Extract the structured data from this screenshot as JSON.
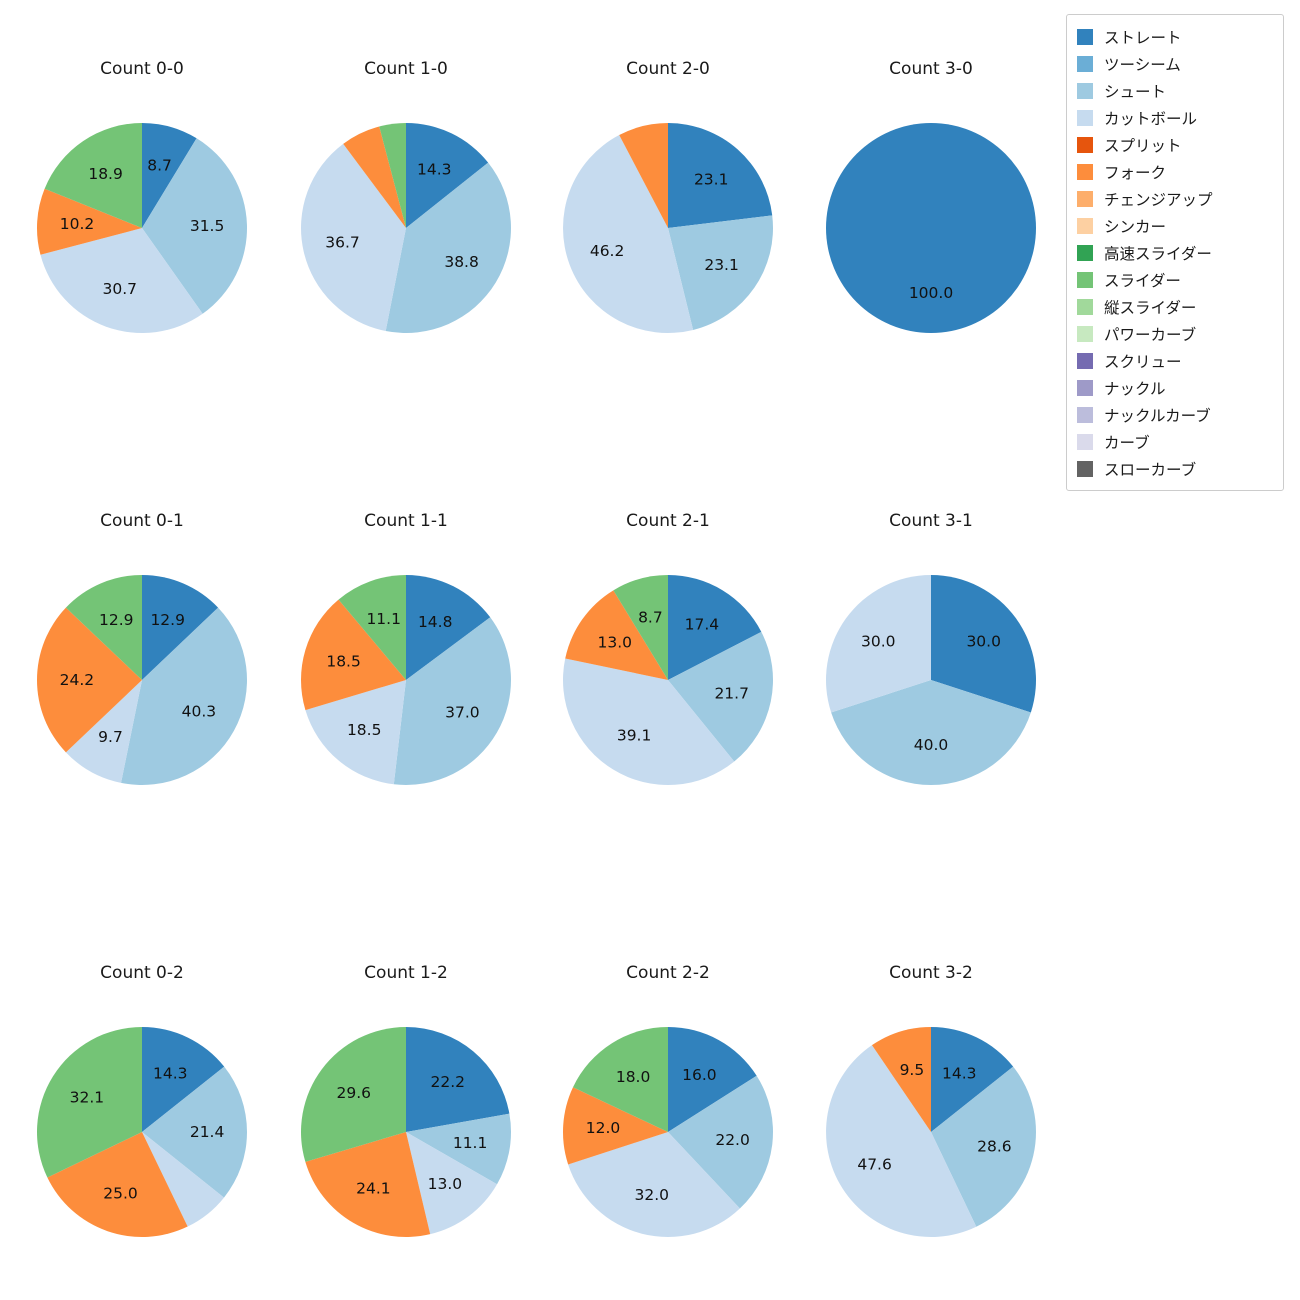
{
  "figure": {
    "background": "#ffffff",
    "label_color": "#111111",
    "title_color": "#1a1a1a"
  },
  "legend": {
    "position": "upper-right",
    "items": [
      {
        "key": "straight",
        "label": "ストレート",
        "color": "#3182bd"
      },
      {
        "key": "two-seam",
        "label": "ツーシーム",
        "color": "#6baed6"
      },
      {
        "key": "shuuto",
        "label": "シュート",
        "color": "#9ecae1"
      },
      {
        "key": "cut-ball",
        "label": "カットボール",
        "color": "#c6dbef"
      },
      {
        "key": "split",
        "label": "スプリット",
        "color": "#e6550d"
      },
      {
        "key": "fork",
        "label": "フォーク",
        "color": "#fd8d3c"
      },
      {
        "key": "changeup",
        "label": "チェンジアップ",
        "color": "#fdae6b"
      },
      {
        "key": "sinker",
        "label": "シンカー",
        "color": "#fdd0a2"
      },
      {
        "key": "fast-slider",
        "label": "高速スライダー",
        "color": "#31a354"
      },
      {
        "key": "slider",
        "label": "スライダー",
        "color": "#74c476"
      },
      {
        "key": "vertical-slider",
        "label": "縦スライダー",
        "color": "#a1d99b"
      },
      {
        "key": "power-curve",
        "label": "パワーカーブ",
        "color": "#c7e9c0"
      },
      {
        "key": "screw",
        "label": "スクリュー",
        "color": "#756bb1"
      },
      {
        "key": "knuckle",
        "label": "ナックル",
        "color": "#9e9ac8"
      },
      {
        "key": "knuckle-curve",
        "label": "ナックルカーブ",
        "color": "#bcbddc"
      },
      {
        "key": "curve",
        "label": "カーブ",
        "color": "#dadaeb"
      },
      {
        "key": "slow-curve",
        "label": "スローカーブ",
        "color": "#636363"
      }
    ]
  },
  "chart_data": [
    {
      "type": "pie",
      "title": "Count 0-0",
      "start_angle_deg": 90,
      "direction": "clockwise",
      "slices": [
        {
          "key": "straight",
          "label": "ストレート",
          "value": 8.7,
          "text": "8.7"
        },
        {
          "key": "shuuto",
          "label": "シュート",
          "value": 31.5,
          "text": "31.5"
        },
        {
          "key": "cut-ball",
          "label": "カットボール",
          "value": 30.7,
          "text": "30.7"
        },
        {
          "key": "fork",
          "label": "フォーク",
          "value": 10.2,
          "text": "10.2"
        },
        {
          "key": "slider",
          "label": "スライダー",
          "value": 18.9,
          "text": "18.9"
        }
      ]
    },
    {
      "type": "pie",
      "title": "Count 1-0",
      "start_angle_deg": 90,
      "direction": "clockwise",
      "slices": [
        {
          "key": "straight",
          "label": "ストレート",
          "value": 14.3,
          "text": "14.3"
        },
        {
          "key": "shuuto",
          "label": "シュート",
          "value": 38.8,
          "text": "38.8"
        },
        {
          "key": "cut-ball",
          "label": "カットボール",
          "value": 36.7,
          "text": "36.7"
        },
        {
          "key": "fork",
          "label": "フォーク",
          "value": 6.1,
          "text": ""
        },
        {
          "key": "slider",
          "label": "スライダー",
          "value": 4.1,
          "text": ""
        }
      ]
    },
    {
      "type": "pie",
      "title": "Count 2-0",
      "start_angle_deg": 90,
      "direction": "clockwise",
      "slices": [
        {
          "key": "straight",
          "label": "ストレート",
          "value": 23.1,
          "text": "23.1"
        },
        {
          "key": "shuuto",
          "label": "シュート",
          "value": 23.1,
          "text": "23.1"
        },
        {
          "key": "cut-ball",
          "label": "カットボール",
          "value": 46.2,
          "text": "46.2"
        },
        {
          "key": "fork",
          "label": "フォーク",
          "value": 7.7,
          "text": ""
        }
      ]
    },
    {
      "type": "pie",
      "title": "Count 3-0",
      "start_angle_deg": 90,
      "direction": "clockwise",
      "slices": [
        {
          "key": "straight",
          "label": "ストレート",
          "value": 100.0,
          "text": "100.0"
        }
      ]
    },
    {
      "type": "pie",
      "title": "Count 0-1",
      "start_angle_deg": 90,
      "direction": "clockwise",
      "slices": [
        {
          "key": "straight",
          "label": "ストレート",
          "value": 12.9,
          "text": "12.9"
        },
        {
          "key": "shuuto",
          "label": "シュート",
          "value": 40.3,
          "text": "40.3"
        },
        {
          "key": "cut-ball",
          "label": "カットボール",
          "value": 9.7,
          "text": "9.7"
        },
        {
          "key": "fork",
          "label": "フォーク",
          "value": 24.2,
          "text": "24.2"
        },
        {
          "key": "slider",
          "label": "スライダー",
          "value": 12.9,
          "text": "12.9"
        }
      ]
    },
    {
      "type": "pie",
      "title": "Count 1-1",
      "start_angle_deg": 90,
      "direction": "clockwise",
      "slices": [
        {
          "key": "straight",
          "label": "ストレート",
          "value": 14.8,
          "text": "14.8"
        },
        {
          "key": "shuuto",
          "label": "シュート",
          "value": 37.0,
          "text": "37.0"
        },
        {
          "key": "cut-ball",
          "label": "カットボール",
          "value": 18.5,
          "text": "18.5"
        },
        {
          "key": "fork",
          "label": "フォーク",
          "value": 18.5,
          "text": "18.5"
        },
        {
          "key": "slider",
          "label": "スライダー",
          "value": 11.1,
          "text": "11.1"
        }
      ]
    },
    {
      "type": "pie",
      "title": "Count 2-1",
      "start_angle_deg": 90,
      "direction": "clockwise",
      "slices": [
        {
          "key": "straight",
          "label": "ストレート",
          "value": 17.4,
          "text": "17.4"
        },
        {
          "key": "shuuto",
          "label": "シュート",
          "value": 21.7,
          "text": "21.7"
        },
        {
          "key": "cut-ball",
          "label": "カットボール",
          "value": 39.1,
          "text": "39.1"
        },
        {
          "key": "fork",
          "label": "フォーク",
          "value": 13.0,
          "text": "13.0"
        },
        {
          "key": "slider",
          "label": "スライダー",
          "value": 8.7,
          "text": "8.7"
        }
      ]
    },
    {
      "type": "pie",
      "title": "Count 3-1",
      "start_angle_deg": 90,
      "direction": "clockwise",
      "slices": [
        {
          "key": "straight",
          "label": "ストレート",
          "value": 30.0,
          "text": "30.0"
        },
        {
          "key": "shuuto",
          "label": "シュート",
          "value": 40.0,
          "text": "40.0"
        },
        {
          "key": "cut-ball",
          "label": "カットボール",
          "value": 30.0,
          "text": "30.0"
        }
      ]
    },
    {
      "type": "pie",
      "title": "Count 0-2",
      "start_angle_deg": 90,
      "direction": "clockwise",
      "slices": [
        {
          "key": "straight",
          "label": "ストレート",
          "value": 14.3,
          "text": "14.3"
        },
        {
          "key": "shuuto",
          "label": "シュート",
          "value": 21.4,
          "text": "21.4"
        },
        {
          "key": "cut-ball",
          "label": "カットボール",
          "value": 7.1,
          "text": ""
        },
        {
          "key": "fork",
          "label": "フォーク",
          "value": 25.0,
          "text": "25.0"
        },
        {
          "key": "slider",
          "label": "スライダー",
          "value": 32.1,
          "text": "32.1"
        }
      ]
    },
    {
      "type": "pie",
      "title": "Count 1-2",
      "start_angle_deg": 90,
      "direction": "clockwise",
      "slices": [
        {
          "key": "straight",
          "label": "ストレート",
          "value": 22.2,
          "text": "22.2"
        },
        {
          "key": "shuuto",
          "label": "シュート",
          "value": 11.1,
          "text": "11.1"
        },
        {
          "key": "cut-ball",
          "label": "カットボール",
          "value": 13.0,
          "text": "13.0"
        },
        {
          "key": "fork",
          "label": "フォーク",
          "value": 24.1,
          "text": "24.1"
        },
        {
          "key": "slider",
          "label": "スライダー",
          "value": 29.6,
          "text": "29.6"
        }
      ]
    },
    {
      "type": "pie",
      "title": "Count 2-2",
      "start_angle_deg": 90,
      "direction": "clockwise",
      "slices": [
        {
          "key": "straight",
          "label": "ストレート",
          "value": 16.0,
          "text": "16.0"
        },
        {
          "key": "shuuto",
          "label": "シュート",
          "value": 22.0,
          "text": "22.0"
        },
        {
          "key": "cut-ball",
          "label": "カットボール",
          "value": 32.0,
          "text": "32.0"
        },
        {
          "key": "fork",
          "label": "フォーク",
          "value": 12.0,
          "text": "12.0"
        },
        {
          "key": "slider",
          "label": "スライダー",
          "value": 18.0,
          "text": "18.0"
        }
      ]
    },
    {
      "type": "pie",
      "title": "Count 3-2",
      "start_angle_deg": 90,
      "direction": "clockwise",
      "slices": [
        {
          "key": "straight",
          "label": "ストレート",
          "value": 14.3,
          "text": "14.3"
        },
        {
          "key": "shuuto",
          "label": "シュート",
          "value": 28.6,
          "text": "28.6"
        },
        {
          "key": "cut-ball",
          "label": "カットボール",
          "value": 47.6,
          "text": "47.6"
        },
        {
          "key": "fork",
          "label": "フォーク",
          "value": 9.5,
          "text": "9.5"
        }
      ]
    }
  ]
}
